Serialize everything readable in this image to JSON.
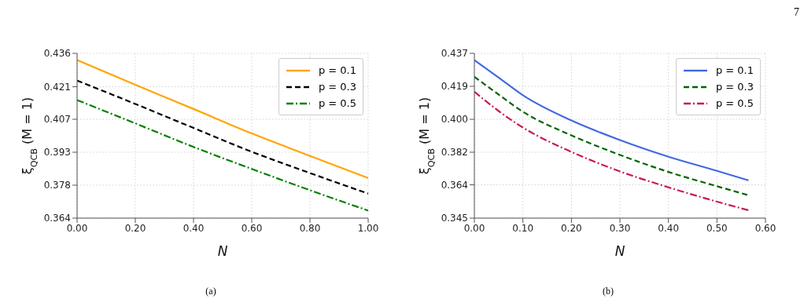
{
  "chart_data": [
    {
      "type": "line",
      "xlabel": "N",
      "ylabel": "ξ$_{QCB}$ (M = 1)",
      "annotations": [
        "(a)"
      ],
      "xlim": [
        0,
        1
      ],
      "xticks": [
        {
          "value": 0,
          "label": "0.00"
        },
        {
          "value": 0.2,
          "label": "0.20"
        },
        {
          "value": 0.4,
          "label": "0.40"
        },
        {
          "value": 0.6,
          "label": "0.60"
        },
        {
          "value": 0.8,
          "label": "0.80"
        },
        {
          "value": 1,
          "label": "1.00"
        }
      ],
      "ylim": [
        0.364,
        0.436
      ],
      "yticks": [
        0.364,
        {
          "value": 0.3784,
          "label": "0.378"
        },
        {
          "value": 0.3928,
          "label": "0.393"
        },
        {
          "value": 0.4072,
          "label": "0.407"
        },
        {
          "value": 0.4214,
          "label": "0.421"
        },
        0.436
      ],
      "grid": true,
      "legend": "top right",
      "marker": "none",
      "series": [
        {
          "name": "p = 0.1",
          "color": "#ffa500",
          "line_style": "solid",
          "x": [
            0,
            0.2,
            0.4,
            0.6,
            0.8,
            1
          ],
          "values": [
            0.4331,
            0.4223,
            0.4117,
            0.401,
            0.3912,
            0.3815
          ]
        },
        {
          "name": "p = 0.3",
          "color": "#000000",
          "line_style": "dashed",
          "x": [
            0,
            0.2,
            0.4,
            0.6,
            0.8,
            1
          ],
          "values": [
            0.4241,
            0.4139,
            0.4034,
            0.393,
            0.3837,
            0.3747
          ]
        },
        {
          "name": "p = 0.5",
          "color": "#008000",
          "line_style": "dashdot",
          "x": [
            0,
            0.2,
            0.4,
            0.6,
            0.8,
            1
          ],
          "values": [
            0.4156,
            0.4054,
            0.3951,
            0.3855,
            0.3762,
            0.3673
          ]
        }
      ]
    },
    {
      "type": "line",
      "xlabel": "N",
      "ylabel": "ξ$_{QCB}$ (M = 1)",
      "annotations": [
        "(b)",
        "7"
      ],
      "xlim": [
        0,
        0.6
      ],
      "xticks": [
        {
          "value": 0,
          "label": "0.00"
        },
        {
          "value": 0.1,
          "label": "0.10"
        },
        {
          "value": 0.2,
          "label": "0.20"
        },
        {
          "value": 0.3,
          "label": "0.30"
        },
        {
          "value": 0.4,
          "label": "0.40"
        },
        {
          "value": 0.5,
          "label": "0.50"
        },
        {
          "value": 0.6,
          "label": "0.60"
        }
      ],
      "ylim": [
        0.345,
        0.437
      ],
      "yticks": [
        0.345,
        {
          "value": 0.3636,
          "label": "0.364"
        },
        {
          "value": 0.3818,
          "label": "0.382"
        },
        {
          "value": 0.4002,
          "label": "0.400"
        },
        {
          "value": 0.4186,
          "label": "0.419"
        },
        0.437
      ],
      "grid": true,
      "legend": "top right",
      "marker": "none",
      "series": [
        {
          "name": "p = 0.1",
          "color": "#4169e1",
          "line_style": "solid",
          "x": [
            0,
            0.05,
            0.1,
            0.2,
            0.3,
            0.4,
            0.5,
            0.565
          ],
          "values": [
            0.4332,
            0.4235,
            0.4136,
            0.3995,
            0.3886,
            0.3793,
            0.3714,
            0.3661
          ]
        },
        {
          "name": "p = 0.3",
          "color": "#006400",
          "line_style": "dashed",
          "x": [
            0,
            0.05,
            0.1,
            0.2,
            0.3,
            0.4,
            0.5,
            0.565
          ],
          "values": [
            0.4239,
            0.414,
            0.4044,
            0.3912,
            0.3803,
            0.3708,
            0.3628,
            0.3578
          ]
        },
        {
          "name": "p = 0.5",
          "color": "#c71a5a",
          "line_style": "dashdot",
          "x": [
            0,
            0.05,
            0.1,
            0.2,
            0.3,
            0.4,
            0.5,
            0.565
          ],
          "values": [
            0.4156,
            0.4048,
            0.3956,
            0.382,
            0.3711,
            0.3622,
            0.3542,
            0.3494
          ]
        }
      ]
    }
  ]
}
